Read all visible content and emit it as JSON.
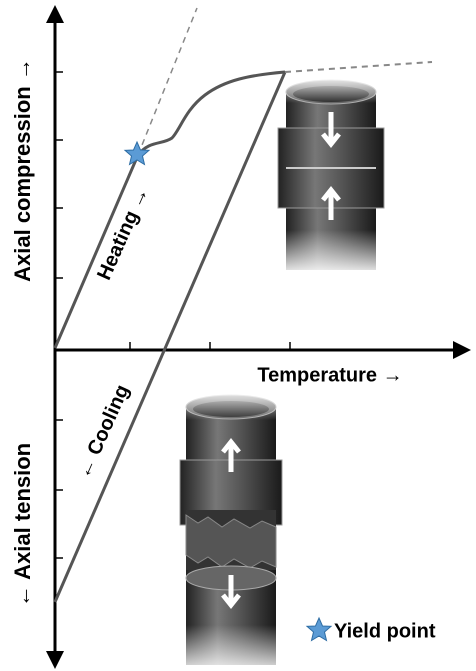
{
  "labels": {
    "y_top": "Axial compression →",
    "y_bottom": "← Axial tension",
    "x": "Temperature →",
    "heating": "Heating →",
    "cooling": "← Cooling",
    "legend": "Yield point"
  }
}
